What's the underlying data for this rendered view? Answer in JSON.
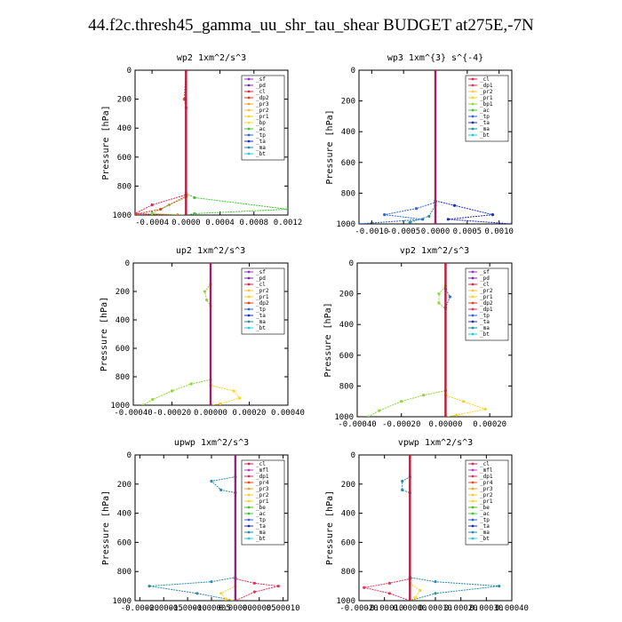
{
  "title": "44.f2c.thresh45_gamma_uu_shr_tau_shear  BUDGET at275E,-7N",
  "ylabel": "Pressure [hPa]",
  "colors": {
    "sf": "#9b30c8",
    "pd": "#7a2ab0",
    "cl": "#e0244f",
    "dp2": "#e33d1e",
    "pr3": "#f2a22a",
    "pr2": "#f5c842",
    "pr1": "#ffd21e",
    "bp": "#f5de2a",
    "bp1": "#8fd63a",
    "ac": "#45c43a",
    "tp": "#2d66d8",
    "ta": "#1c2fb5",
    "ma": "#2a8aa8",
    "bt": "#27c8d8",
    "dp1": "#e4325a",
    "mfl": "#b540c0",
    "pr4": "#e84a1a",
    "be": "#3cbf2a"
  },
  "chart_data": [
    {
      "type": "line",
      "title": "wp2  1xm^2/s^3",
      "ylabel": "Pressure [hPa]",
      "xlim": [
        -0.0006,
        0.0012
      ],
      "ylim": [
        1000,
        0
      ],
      "xticks": [
        -0.0004,
        0.0,
        0.0004,
        0.0008,
        0.0012
      ],
      "xtick_labels": [
        "-0.0004",
        "0.0000",
        "0.0004",
        "0.0008",
        "0.0012"
      ],
      "yticks": [
        0,
        200,
        400,
        600,
        800,
        1000
      ],
      "legend": [
        "_sf",
        "_pd",
        "_cl",
        "_dp2",
        "_pr3",
        "_pr2",
        "_pr1",
        "_bp",
        "_ac",
        "_tp",
        "_ta",
        "_ma",
        "_bt"
      ],
      "legend_placement": "top-right",
      "series": [
        {
          "name": "_ac",
          "color": "ac",
          "points": [
            [
              0,
              0
            ],
            [
              0,
              850
            ],
            [
              0.0001,
              880
            ],
            [
              0.0012,
              960
            ],
            [
              0.0001,
              990
            ],
            [
              0,
              1000
            ]
          ]
        },
        {
          "name": "_cl",
          "color": "cl",
          "points": [
            [
              0,
              0
            ],
            [
              0,
              860
            ],
            [
              -0.0004,
              930
            ],
            [
              -0.0006,
              990
            ],
            [
              -0.0001,
              1000
            ]
          ]
        },
        {
          "name": "_bp",
          "color": "bp1",
          "points": [
            [
              0,
              0
            ],
            [
              0,
              880
            ],
            [
              -0.0002,
              930
            ],
            [
              -0.0004,
              990
            ],
            [
              0,
              1000
            ]
          ]
        },
        {
          "name": "_dp2",
          "color": "dp2",
          "points": [
            [
              0,
              0
            ],
            [
              -2e-05,
              200
            ],
            [
              0,
              260
            ],
            [
              0,
              870
            ],
            [
              -0.0003,
              960
            ],
            [
              -0.0006,
              995
            ]
          ]
        },
        {
          "name": "_pd",
          "color": "pd",
          "points": [
            [
              0,
              0
            ],
            [
              0,
              1000
            ]
          ]
        }
      ]
    },
    {
      "type": "line",
      "title": "wp3  1xm^{3} s^{-4}",
      "ylabel": "Pressure [hPa]",
      "xlim": [
        -0.0012,
        0.0012
      ],
      "ylim": [
        1000,
        0
      ],
      "xticks": [
        -0.001,
        -0.0005,
        0.0,
        0.0005,
        0.001
      ],
      "xtick_labels": [
        "-0.0010",
        "-0.0005",
        "0.0000",
        "0.0005",
        "0.0010"
      ],
      "yticks": [
        0,
        200,
        400,
        600,
        800,
        1000
      ],
      "legend": [
        "_cl",
        "_dp1",
        "_pr2",
        "_pr1",
        "_bp1",
        "_ac",
        "_tp",
        "_ta",
        "_ma",
        "_bt"
      ],
      "legend_placement": "top-right",
      "series": [
        {
          "name": "_ta",
          "color": "ta",
          "points": [
            [
              0,
              0
            ],
            [
              0,
              850
            ],
            [
              0.0003,
              880
            ],
            [
              0.0009,
              940
            ],
            [
              0.0002,
              970
            ],
            [
              0.0012,
              1000
            ]
          ]
        },
        {
          "name": "_tp",
          "color": "tp",
          "points": [
            [
              0,
              0
            ],
            [
              0,
              860
            ],
            [
              -0.0003,
              900
            ],
            [
              -0.0008,
              940
            ],
            [
              -0.0002,
              970
            ],
            [
              -0.0012,
              1000
            ]
          ]
        },
        {
          "name": "_ma",
          "color": "ma",
          "points": [
            [
              0,
              0
            ],
            [
              0,
              880
            ],
            [
              -0.0001,
              950
            ],
            [
              -0.0004,
              990
            ]
          ]
        },
        {
          "name": "_cl",
          "color": "cl",
          "points": [
            [
              0,
              0
            ],
            [
              0,
              1000
            ]
          ]
        }
      ]
    },
    {
      "type": "line",
      "title": "up2  1xm^2/s^3",
      "ylabel": "Pressure [hPa]",
      "xlim": [
        -0.0004,
        0.0004
      ],
      "ylim": [
        1000,
        0
      ],
      "xticks": [
        -0.0004,
        -0.0002,
        0.0,
        0.0002,
        0.0004
      ],
      "xtick_labels": [
        "-0.00040",
        "-0.00020",
        "0.00000",
        "0.00020",
        "0.00040"
      ],
      "yticks": [
        0,
        200,
        400,
        600,
        800,
        1000
      ],
      "legend": [
        "_sf",
        "_pd",
        "_cl",
        "_pr2",
        "_pr1",
        "_dp2",
        "_tp",
        "_ta",
        "_ma",
        "_bt"
      ],
      "legend_placement": "top-right",
      "series": [
        {
          "name": "_dp2",
          "color": "bp1",
          "points": [
            [
              0,
              0
            ],
            [
              0,
              150
            ],
            [
              -3e-05,
              200
            ],
            [
              -2e-05,
              260
            ],
            [
              0,
              300
            ],
            [
              0,
              820
            ],
            [
              -0.0001,
              850
            ],
            [
              -0.0002,
              900
            ],
            [
              -0.0003,
              960
            ],
            [
              -0.00035,
              1000
            ]
          ]
        },
        {
          "name": "_pr2",
          "color": "pr1",
          "points": [
            [
              0,
              0
            ],
            [
              0,
              860
            ],
            [
              0.00012,
              900
            ],
            [
              0.00015,
              950
            ],
            [
              5e-05,
              990
            ],
            [
              0,
              1000
            ]
          ]
        },
        {
          "name": "_cl",
          "color": "cl",
          "points": [
            [
              0,
              0
            ],
            [
              0,
              1000
            ]
          ]
        }
      ]
    },
    {
      "type": "line",
      "title": "vp2  1xm^2/s^3",
      "ylabel": "Pressure [hPa]",
      "xlim": [
        -0.0004,
        0.0003
      ],
      "ylim": [
        1000,
        0
      ],
      "xticks": [
        -0.0004,
        -0.0002,
        0.0,
        0.0002
      ],
      "xtick_labels": [
        "-0.00040",
        "-0.00020",
        "0.00000",
        "0.00020"
      ],
      "yticks": [
        0,
        200,
        400,
        600,
        800,
        1000
      ],
      "legend": [
        "_sf",
        "_pd",
        "_cl",
        "_pr2",
        "_pr1",
        "_dp2",
        "_dp1",
        "_tp",
        "_ta",
        "_ma",
        "_bt"
      ],
      "legend_placement": "top-right",
      "series": [
        {
          "name": "_dp2",
          "color": "bp1",
          "points": [
            [
              0,
              0
            ],
            [
              0,
              150
            ],
            [
              -3e-05,
              200
            ],
            [
              -3e-05,
              260
            ],
            [
              0,
              300
            ],
            [
              0,
              830
            ],
            [
              -0.0001,
              860
            ],
            [
              -0.0002,
              900
            ],
            [
              -0.0003,
              960
            ],
            [
              -0.00035,
              1000
            ]
          ]
        },
        {
          "name": "_pr2",
          "color": "pr1",
          "points": [
            [
              0,
              0
            ],
            [
              0,
              860
            ],
            [
              8e-05,
              900
            ],
            [
              0.00018,
              950
            ],
            [
              5e-05,
              990
            ],
            [
              0,
              1000
            ]
          ]
        },
        {
          "name": "_tp",
          "color": "tp",
          "points": [
            [
              0,
              0
            ],
            [
              0,
              170
            ],
            [
              2e-05,
              220
            ],
            [
              0,
              290
            ],
            [
              0,
              1000
            ]
          ]
        },
        {
          "name": "_cl",
          "color": "cl",
          "points": [
            [
              0,
              0
            ],
            [
              0,
              1000
            ]
          ]
        }
      ]
    },
    {
      "type": "line",
      "title": "upwp  1xm^2/s^3",
      "ylabel": "Pressure [hPa]",
      "xlim": [
        -0.00021,
        0.00011
      ],
      "ylim": [
        1000,
        0
      ],
      "xticks": [
        -0.0002,
        -0.00015,
        -0.0001,
        -5e-05,
        0.0,
        5e-05,
        0.0001
      ],
      "xtick_labels": [
        "-0.00020",
        "-0.00015",
        "-0.00010",
        "-0.00005",
        "0.00000",
        "0.00005",
        "0.00010"
      ],
      "yticks": [
        0,
        200,
        400,
        600,
        800,
        1000
      ],
      "legend": [
        "_cl",
        "_mfl",
        "_dp1",
        "_pr4",
        "_pr3",
        "_pr2",
        "_pr1",
        "_be",
        "_ac",
        "_tp",
        "_ta",
        "_ma",
        "_bt"
      ],
      "legend_placement": "top-right",
      "series": [
        {
          "name": "_ma",
          "color": "ma",
          "points": [
            [
              0,
              0
            ],
            [
              0,
              150
            ],
            [
              -5e-05,
              180
            ],
            [
              -3e-05,
              240
            ],
            [
              0,
              260
            ],
            [
              0,
              840
            ],
            [
              -5e-05,
              870
            ],
            [
              -0.00018,
              900
            ],
            [
              -8e-05,
              950
            ],
            [
              0,
              1000
            ]
          ]
        },
        {
          "name": "_dp1",
          "color": "dp1",
          "points": [
            [
              0,
              0
            ],
            [
              0,
              850
            ],
            [
              4e-05,
              880
            ],
            [
              9e-05,
              900
            ],
            [
              4e-05,
              940
            ],
            [
              0,
              1000
            ]
          ]
        },
        {
          "name": "_pr1",
          "color": "pr1",
          "points": [
            [
              0,
              0
            ],
            [
              0,
              900
            ],
            [
              -3e-05,
              950
            ],
            [
              -2e-05,
              990
            ],
            [
              0,
              1000
            ]
          ]
        },
        {
          "name": "_cl",
          "color": "cl",
          "points": [
            [
              0,
              0
            ],
            [
              0,
              1000
            ]
          ]
        }
      ]
    },
    {
      "type": "line",
      "title": "vpwp  1xm^2/s^3",
      "ylabel": "Pressure [hPa]",
      "xlim": [
        -0.0002,
        0.0004
      ],
      "ylim": [
        1000,
        0
      ],
      "xticks": [
        -0.0002,
        -0.0001,
        0.0,
        0.0001,
        0.0002,
        0.0003,
        0.0004
      ],
      "xtick_labels": [
        "-0.00020",
        "-0.00010",
        "0.00000",
        "0.00010",
        "0.00020",
        "0.00030",
        "0.00040"
      ],
      "yticks": [
        0,
        200,
        400,
        600,
        800,
        1000
      ],
      "legend": [
        "_cl",
        "_mfl",
        "_dp1",
        "_pr4",
        "_pr3",
        "_pr2",
        "_pr1",
        "_be",
        "_ac",
        "_tp",
        "_ta",
        "_ma",
        "_bt"
      ],
      "legend_placement": "top-right",
      "series": [
        {
          "name": "_ma",
          "color": "ma",
          "points": [
            [
              0,
              0
            ],
            [
              0,
              150
            ],
            [
              -3e-05,
              180
            ],
            [
              -3e-05,
              240
            ],
            [
              0,
              260
            ],
            [
              0,
              840
            ],
            [
              0.0001,
              870
            ],
            [
              0.00035,
              900
            ],
            [
              0.0001,
              950
            ],
            [
              0,
              1000
            ]
          ]
        },
        {
          "name": "_dp1",
          "color": "dp1",
          "points": [
            [
              0,
              0
            ],
            [
              0,
              850
            ],
            [
              -8e-05,
              880
            ],
            [
              -0.00018,
              910
            ],
            [
              -8e-05,
              950
            ],
            [
              0,
              1000
            ]
          ]
        },
        {
          "name": "_pr1",
          "color": "pr1",
          "points": [
            [
              0,
              0
            ],
            [
              0,
              880
            ],
            [
              4e-05,
              930
            ],
            [
              2e-05,
              980
            ],
            [
              0,
              1000
            ]
          ]
        },
        {
          "name": "_cl",
          "color": "cl",
          "points": [
            [
              0,
              0
            ],
            [
              0,
              1000
            ]
          ]
        }
      ]
    }
  ]
}
